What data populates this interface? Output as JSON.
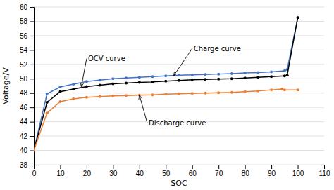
{
  "chart_data": {
    "type": "line",
    "xlabel": "SOC",
    "ylabel": "Voltage/V",
    "xlim": [
      0,
      110
    ],
    "ylim": [
      38,
      60
    ],
    "xticks": [
      0,
      10,
      20,
      30,
      40,
      50,
      60,
      70,
      80,
      90,
      100,
      110
    ],
    "yticks": [
      38,
      40,
      42,
      44,
      46,
      48,
      50,
      52,
      54,
      56,
      58,
      60
    ],
    "grid": "y",
    "series": [
      {
        "color": "#4472c4",
        "marker": "circle",
        "line_style": "solid",
        "x": [
          0,
          5,
          10,
          15,
          20,
          25,
          30,
          35,
          40,
          45,
          50,
          55,
          60,
          65,
          70,
          75,
          80,
          85,
          90,
          95,
          96,
          100
        ],
        "values": [
          40.0,
          47.9,
          48.85,
          49.25,
          49.6,
          49.8,
          50.0,
          50.1,
          50.2,
          50.3,
          50.4,
          50.5,
          50.55,
          50.6,
          50.65,
          50.7,
          50.8,
          50.85,
          50.95,
          51.1,
          51.3,
          58.5
        ]
      },
      {
        "color": "#000000",
        "marker": "circle",
        "line_style": "solid",
        "x": [
          0,
          5,
          10,
          15,
          20,
          25,
          30,
          35,
          40,
          45,
          50,
          55,
          60,
          65,
          70,
          75,
          80,
          85,
          90,
          95,
          96,
          100
        ],
        "values": [
          40.0,
          46.7,
          48.2,
          48.55,
          48.9,
          49.1,
          49.3,
          49.4,
          49.5,
          49.55,
          49.65,
          49.75,
          49.85,
          49.9,
          49.95,
          50.0,
          50.1,
          50.2,
          50.3,
          50.4,
          50.5,
          58.5
        ]
      },
      {
        "color": "#ed7d31",
        "marker": "circle",
        "line_style": "solid",
        "x": [
          0,
          5,
          10,
          15,
          20,
          25,
          30,
          35,
          40,
          45,
          50,
          55,
          60,
          65,
          70,
          75,
          80,
          85,
          90,
          94,
          95,
          100
        ],
        "values": [
          40.0,
          45.2,
          46.8,
          47.2,
          47.4,
          47.5,
          47.6,
          47.65,
          47.7,
          47.75,
          47.85,
          47.9,
          47.95,
          48.0,
          48.05,
          48.1,
          48.2,
          48.3,
          48.45,
          48.55,
          48.45,
          48.45
        ]
      }
    ],
    "annotations": [
      {
        "text": "OCV curve",
        "x": 18,
        "y": 48.9,
        "text_x": 20,
        "text_y": 52.8
      },
      {
        "text": "Charge curve",
        "x": 53,
        "y": 50.42,
        "text_x": 60,
        "text_y": 54.2
      },
      {
        "text": "Discharge curve",
        "x": 40,
        "y": 47.7,
        "text_x": 43,
        "text_y": 43.8
      }
    ]
  }
}
